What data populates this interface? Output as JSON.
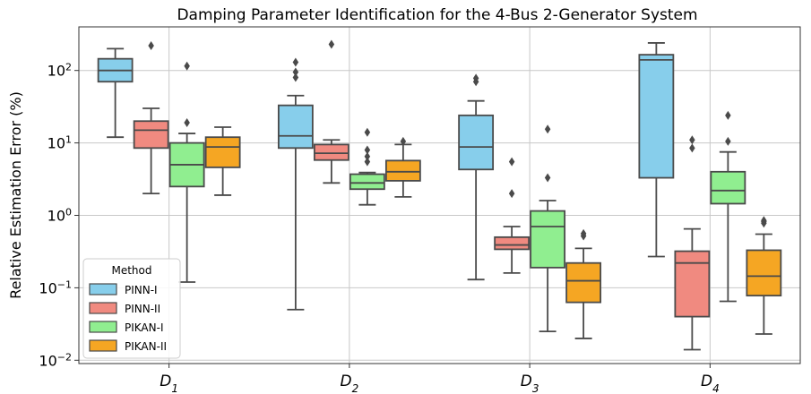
{
  "chart_data": {
    "type": "box",
    "title": "Damping Parameter Identification for the 4-Bus 2-Generator System",
    "xlabel": "",
    "ylabel": "Relative Estimation Error (%)",
    "yscale": "log",
    "ylim": [
      0.009,
      400
    ],
    "y_ticks": [
      {
        "value": 0.01,
        "base": "10",
        "exp": "−2"
      },
      {
        "value": 0.1,
        "base": "10",
        "exp": "−1"
      },
      {
        "value": 1,
        "base": "10",
        "exp": "0"
      },
      {
        "value": 10,
        "base": "10",
        "exp": "1"
      },
      {
        "value": 100,
        "base": "10",
        "exp": "2"
      }
    ],
    "categories": [
      {
        "base": "D",
        "sub": "1"
      },
      {
        "base": "D",
        "sub": "2"
      },
      {
        "base": "D",
        "sub": "3"
      },
      {
        "base": "D",
        "sub": "4"
      }
    ],
    "grid": true,
    "legend": {
      "title": "Method",
      "position": "lower-left"
    },
    "series": [
      {
        "name": "PINN-I",
        "color": "#87CEEB",
        "boxes": [
          {
            "whislo": 12,
            "q1": 70,
            "med": 100,
            "q3": 145,
            "whishi": 200,
            "fliers": []
          },
          {
            "whislo": 0.05,
            "q1": 8.5,
            "med": 12.5,
            "q3": 33,
            "whishi": 45,
            "fliers": [
              80,
              95,
              130
            ]
          },
          {
            "whislo": 0.13,
            "q1": 4.3,
            "med": 8.8,
            "q3": 24,
            "whishi": 38,
            "fliers": [
              70,
              78
            ]
          },
          {
            "whislo": 0.27,
            "q1": 3.3,
            "med": 140,
            "q3": 165,
            "whishi": 240,
            "fliers": []
          }
        ]
      },
      {
        "name": "PINN-II",
        "color": "#F08A80",
        "boxes": [
          {
            "whislo": 2.0,
            "q1": 8.5,
            "med": 15,
            "q3": 20,
            "whishi": 30,
            "fliers": [
              220
            ]
          },
          {
            "whislo": 2.8,
            "q1": 5.8,
            "med": 7.2,
            "q3": 9.5,
            "whishi": 11,
            "fliers": [
              230
            ]
          },
          {
            "whislo": 0.16,
            "q1": 0.34,
            "med": 0.39,
            "q3": 0.5,
            "whishi": 0.7,
            "fliers": [
              2.0,
              5.5
            ]
          },
          {
            "whislo": 0.014,
            "q1": 0.04,
            "med": 0.22,
            "q3": 0.32,
            "whishi": 0.65,
            "fliers": [
              8.5,
              11
            ]
          }
        ]
      },
      {
        "name": "PIKAN-I",
        "color": "#90EE90",
        "boxes": [
          {
            "whislo": 0.12,
            "q1": 2.5,
            "med": 5.0,
            "q3": 10,
            "whishi": 13.5,
            "fliers": [
              19,
              115
            ]
          },
          {
            "whislo": 1.4,
            "q1": 2.3,
            "med": 2.8,
            "q3": 3.7,
            "whishi": 3.9,
            "fliers": [
              5.5,
              6.5,
              8,
              14
            ]
          },
          {
            "whislo": 0.025,
            "q1": 0.19,
            "med": 0.7,
            "q3": 1.15,
            "whishi": 1.6,
            "fliers": [
              3.3,
              15.5
            ]
          },
          {
            "whislo": 0.065,
            "q1": 1.45,
            "med": 2.2,
            "q3": 4.0,
            "whishi": 7.5,
            "fliers": [
              10.5,
              24
            ]
          }
        ]
      },
      {
        "name": "PIKAN-II",
        "color": "#F5A623",
        "boxes": [
          {
            "whislo": 1.9,
            "q1": 4.6,
            "med": 8.8,
            "q3": 12,
            "whishi": 16.5,
            "fliers": []
          },
          {
            "whislo": 1.8,
            "q1": 3.0,
            "med": 4.0,
            "q3": 5.7,
            "whishi": 9.5,
            "fliers": [
              10.5
            ]
          },
          {
            "whislo": 0.02,
            "q1": 0.063,
            "med": 0.125,
            "q3": 0.22,
            "whishi": 0.35,
            "fliers": [
              0.52,
              0.56
            ]
          },
          {
            "whislo": 0.023,
            "q1": 0.078,
            "med": 0.145,
            "q3": 0.33,
            "whishi": 0.55,
            "fliers": [
              0.78,
              0.82,
              0.85
            ]
          }
        ]
      }
    ]
  }
}
